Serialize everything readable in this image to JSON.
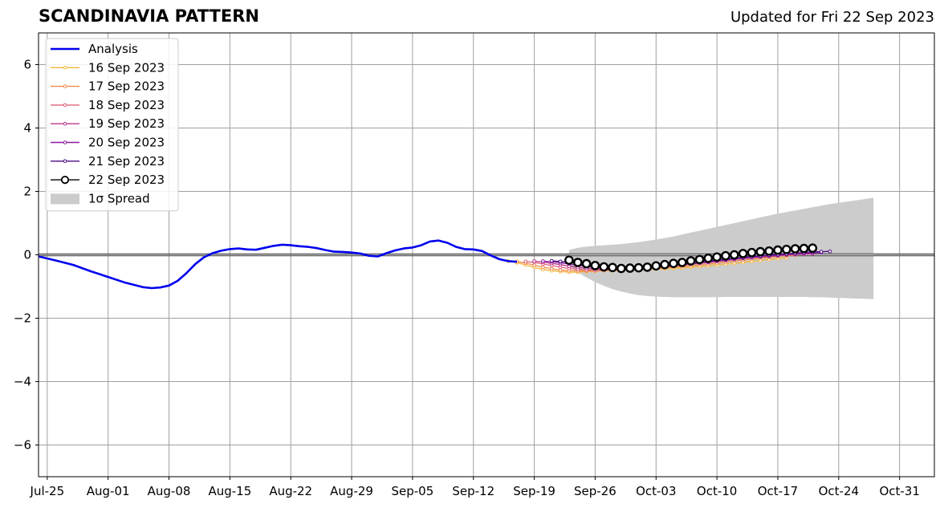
{
  "header": {
    "title": "SCANDINAVIA PATTERN",
    "updated": "Updated for Fri 22 Sep 2023"
  },
  "chart_data": {
    "type": "line",
    "title": "SCANDINAVIA PATTERN",
    "subtitle": "Updated for Fri 22 Sep 2023",
    "xlabel": "",
    "ylabel": "",
    "x_axis": {
      "type": "date",
      "range": [
        "2023-07-24",
        "2023-11-04"
      ],
      "ticks": [
        "2023-07-25",
        "2023-08-01",
        "2023-08-08",
        "2023-08-15",
        "2023-08-22",
        "2023-08-29",
        "2023-09-05",
        "2023-09-12",
        "2023-09-19",
        "2023-09-26",
        "2023-10-03",
        "2023-10-10",
        "2023-10-17",
        "2023-10-24",
        "2023-10-31"
      ],
      "tick_labels": [
        "Jul-25",
        "Aug-01",
        "Aug-08",
        "Aug-15",
        "Aug-22",
        "Aug-29",
        "Sep-05",
        "Sep-12",
        "Sep-19",
        "Sep-26",
        "Oct-03",
        "Oct-10",
        "Oct-17",
        "Oct-24",
        "Oct-31"
      ]
    },
    "y_axis": {
      "range": [
        -7,
        7
      ],
      "ticks": [
        -6,
        -4,
        -2,
        0,
        2,
        4,
        6
      ],
      "tick_labels": [
        "−6",
        "−4",
        "−2",
        "0",
        "2",
        "4",
        "6"
      ]
    },
    "grid": true,
    "zero_line": true,
    "legend": {
      "placement": "top-left"
    },
    "analysis": {
      "name": "Analysis",
      "color": "#0000ee",
      "points": [
        [
          "2023-07-24",
          -0.05
        ],
        [
          "2023-07-26",
          -0.18
        ],
        [
          "2023-07-28",
          -0.32
        ],
        [
          "2023-07-30",
          -0.52
        ],
        [
          "2023-08-01",
          -0.7
        ],
        [
          "2023-08-03",
          -0.88
        ],
        [
          "2023-08-05",
          -1.02
        ],
        [
          "2023-08-06",
          -1.05
        ],
        [
          "2023-08-07",
          -1.03
        ],
        [
          "2023-08-08",
          -0.97
        ],
        [
          "2023-08-09",
          -0.82
        ],
        [
          "2023-08-10",
          -0.58
        ],
        [
          "2023-08-11",
          -0.3
        ],
        [
          "2023-08-12",
          -0.08
        ],
        [
          "2023-08-13",
          0.05
        ],
        [
          "2023-08-14",
          0.13
        ],
        [
          "2023-08-15",
          0.18
        ],
        [
          "2023-08-16",
          0.2
        ],
        [
          "2023-08-17",
          0.17
        ],
        [
          "2023-08-18",
          0.16
        ],
        [
          "2023-08-19",
          0.22
        ],
        [
          "2023-08-20",
          0.28
        ],
        [
          "2023-08-21",
          0.32
        ],
        [
          "2023-08-22",
          0.3
        ],
        [
          "2023-08-23",
          0.27
        ],
        [
          "2023-08-24",
          0.25
        ],
        [
          "2023-08-25",
          0.21
        ],
        [
          "2023-08-26",
          0.15
        ],
        [
          "2023-08-27",
          0.1
        ],
        [
          "2023-08-28",
          0.09
        ],
        [
          "2023-08-29",
          0.07
        ],
        [
          "2023-08-30",
          0.04
        ],
        [
          "2023-08-31",
          -0.03
        ],
        [
          "2023-09-01",
          -0.05
        ],
        [
          "2023-09-02",
          0.05
        ],
        [
          "2023-09-03",
          0.14
        ],
        [
          "2023-09-04",
          0.2
        ],
        [
          "2023-09-05",
          0.23
        ],
        [
          "2023-09-06",
          0.3
        ],
        [
          "2023-09-07",
          0.42
        ],
        [
          "2023-09-08",
          0.45
        ],
        [
          "2023-09-09",
          0.38
        ],
        [
          "2023-09-10",
          0.25
        ],
        [
          "2023-09-11",
          0.18
        ],
        [
          "2023-09-12",
          0.17
        ],
        [
          "2023-09-13",
          0.12
        ],
        [
          "2023-09-14",
          -0.02
        ],
        [
          "2023-09-15",
          -0.14
        ],
        [
          "2023-09-16",
          -0.2
        ],
        [
          "2023-09-17",
          -0.22
        ]
      ]
    },
    "forecasts": [
      {
        "name": "16 Sep 2023",
        "color": "#f5b83a",
        "start": "2023-09-16",
        "values": [
          -0.2,
          -0.25,
          -0.32,
          -0.4,
          -0.46,
          -0.5,
          -0.53,
          -0.55,
          -0.55,
          -0.53,
          -0.52,
          -0.5,
          -0.5,
          -0.49,
          -0.48,
          -0.47,
          -0.46,
          -0.45,
          -0.44,
          -0.43,
          -0.41,
          -0.39,
          -0.37,
          -0.35,
          -0.32,
          -0.29,
          -0.27,
          -0.24,
          -0.21,
          -0.18,
          -0.15,
          -0.12,
          -0.09
        ]
      },
      {
        "name": "17 Sep 2023",
        "color": "#f08a4b",
        "start": "2023-09-17",
        "values": [
          -0.21,
          -0.26,
          -0.33,
          -0.39,
          -0.44,
          -0.48,
          -0.5,
          -0.51,
          -0.51,
          -0.5,
          -0.49,
          -0.48,
          -0.48,
          -0.47,
          -0.46,
          -0.45,
          -0.43,
          -0.41,
          -0.39,
          -0.37,
          -0.35,
          -0.32,
          -0.29,
          -0.26,
          -0.23,
          -0.2,
          -0.17,
          -0.14,
          -0.11,
          -0.08,
          -0.05,
          -0.03,
          -0.01
        ]
      },
      {
        "name": "18 Sep 2023",
        "color": "#e0607a",
        "start": "2023-09-18",
        "values": [
          -0.21,
          -0.24,
          -0.29,
          -0.34,
          -0.39,
          -0.43,
          -0.46,
          -0.48,
          -0.49,
          -0.49,
          -0.48,
          -0.47,
          -0.46,
          -0.44,
          -0.42,
          -0.4,
          -0.38,
          -0.36,
          -0.33,
          -0.3,
          -0.27,
          -0.24,
          -0.21,
          -0.18,
          -0.15,
          -0.12,
          -0.09,
          -0.06,
          -0.04,
          -0.02,
          0.0,
          0.02,
          0.03
        ]
      },
      {
        "name": "19 Sep 2023",
        "color": "#b8378c",
        "start": "2023-09-19",
        "values": [
          -0.2,
          -0.23,
          -0.27,
          -0.31,
          -0.36,
          -0.4,
          -0.43,
          -0.45,
          -0.46,
          -0.46,
          -0.45,
          -0.44,
          -0.42,
          -0.4,
          -0.38,
          -0.36,
          -0.34,
          -0.31,
          -0.29,
          -0.26,
          -0.24,
          -0.21,
          -0.18,
          -0.15,
          -0.12,
          -0.09,
          -0.07,
          -0.05,
          -0.03,
          -0.01,
          0.01,
          0.02,
          0.03
        ]
      },
      {
        "name": "20 Sep 2023",
        "color": "#8a1ca0",
        "start": "2023-09-20",
        "values": [
          -0.2,
          -0.22,
          -0.25,
          -0.29,
          -0.33,
          -0.37,
          -0.4,
          -0.42,
          -0.43,
          -0.43,
          -0.42,
          -0.41,
          -0.39,
          -0.37,
          -0.35,
          -0.33,
          -0.3,
          -0.28,
          -0.25,
          -0.22,
          -0.19,
          -0.16,
          -0.13,
          -0.1,
          -0.08,
          -0.05,
          -0.03,
          -0.01,
          0.01,
          0.03,
          0.05,
          0.06,
          0.07
        ]
      },
      {
        "name": "21 Sep 2023",
        "color": "#4a0a80",
        "start": "2023-09-21",
        "values": [
          -0.19,
          -0.21,
          -0.24,
          -0.28,
          -0.32,
          -0.35,
          -0.38,
          -0.4,
          -0.41,
          -0.41,
          -0.4,
          -0.38,
          -0.36,
          -0.34,
          -0.32,
          -0.29,
          -0.26,
          -0.23,
          -0.2,
          -0.17,
          -0.14,
          -0.11,
          -0.08,
          -0.05,
          -0.03,
          -0.01,
          0.01,
          0.03,
          0.05,
          0.07,
          0.09,
          0.1,
          0.11
        ]
      },
      {
        "name": "22 Sep 2023",
        "color": "#000000",
        "start": "2023-09-23",
        "values": [
          -0.17,
          -0.24,
          -0.28,
          -0.34,
          -0.38,
          -0.4,
          -0.43,
          -0.42,
          -0.41,
          -0.39,
          -0.35,
          -0.31,
          -0.27,
          -0.24,
          -0.19,
          -0.15,
          -0.11,
          -0.07,
          -0.03,
          0.0,
          0.04,
          0.07,
          0.1,
          0.12,
          0.15,
          0.17,
          0.19,
          0.2,
          0.21
        ]
      }
    ],
    "spread": {
      "name": "1σ Spread",
      "color": "#cccccc",
      "start": "2023-09-23",
      "upper": [
        0.15,
        0.22,
        0.26,
        0.28,
        0.3,
        0.32,
        0.34,
        0.37,
        0.4,
        0.44,
        0.48,
        0.53,
        0.58,
        0.64,
        0.7,
        0.76,
        0.82,
        0.88,
        0.94,
        1.0,
        1.06,
        1.12,
        1.18,
        1.24,
        1.3,
        1.35,
        1.4,
        1.45,
        1.5,
        1.55,
        1.6,
        1.64,
        1.68,
        1.72,
        1.76,
        1.8
      ],
      "lower": [
        -0.35,
        -0.55,
        -0.72,
        -0.86,
        -0.98,
        -1.08,
        -1.16,
        -1.22,
        -1.27,
        -1.3,
        -1.32,
        -1.33,
        -1.34,
        -1.34,
        -1.34,
        -1.34,
        -1.34,
        -1.34,
        -1.33,
        -1.33,
        -1.33,
        -1.33,
        -1.33,
        -1.33,
        -1.33,
        -1.33,
        -1.33,
        -1.33,
        -1.34,
        -1.34,
        -1.35,
        -1.36,
        -1.37,
        -1.38,
        -1.39,
        -1.4
      ]
    }
  }
}
